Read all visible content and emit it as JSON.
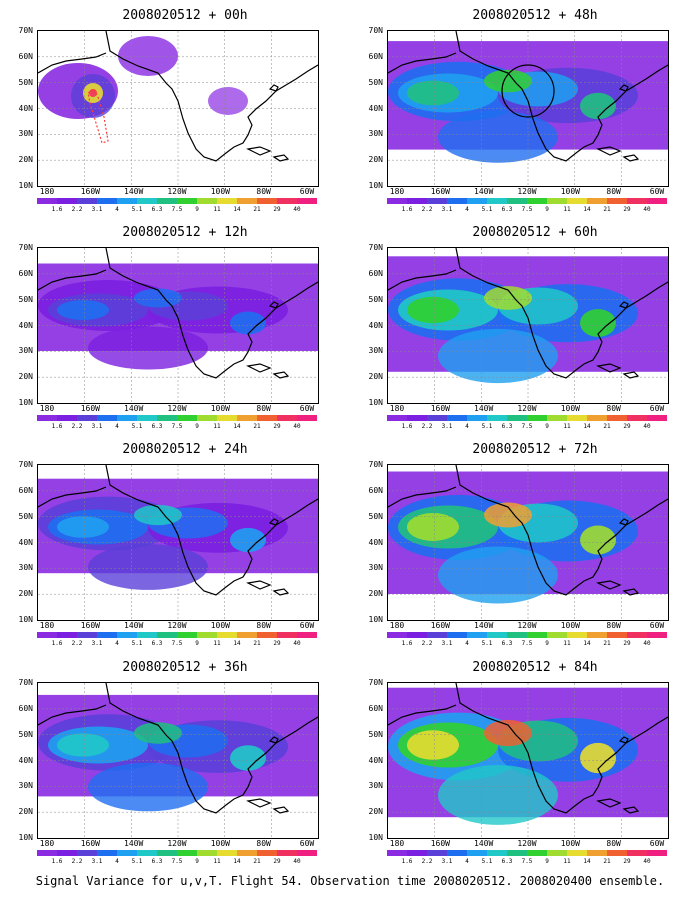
{
  "panels": [
    {
      "title": "2008020512 + 00h",
      "lead_hours": 0,
      "intensity": 0.15,
      "circle": false,
      "marker": true
    },
    {
      "title": "2008020512 + 48h",
      "lead_hours": 48,
      "intensity": 0.55,
      "circle": true,
      "marker": false
    },
    {
      "title": "2008020512 + 12h",
      "lead_hours": 12,
      "intensity": 0.25,
      "circle": false,
      "marker": false
    },
    {
      "title": "2008020512 + 60h",
      "lead_hours": 60,
      "intensity": 0.65,
      "circle": false,
      "marker": false
    },
    {
      "title": "2008020512 + 24h",
      "lead_hours": 24,
      "intensity": 0.35,
      "circle": false,
      "marker": false
    },
    {
      "title": "2008020512 + 72h",
      "lead_hours": 72,
      "intensity": 0.75,
      "circle": false,
      "marker": false
    },
    {
      "title": "2008020512 + 36h",
      "lead_hours": 36,
      "intensity": 0.45,
      "circle": false,
      "marker": false
    },
    {
      "title": "2008020512 + 84h",
      "lead_hours": 84,
      "intensity": 0.85,
      "circle": false,
      "marker": false
    }
  ],
  "y_labels": [
    "70N",
    "60N",
    "50N",
    "40N",
    "30N",
    "20N",
    "10N"
  ],
  "x_labels": [
    "180",
    "160W",
    "140W",
    "120W",
    "100W",
    "80W",
    "60W"
  ],
  "colorbar": {
    "labels": [
      "1.6",
      "2.2",
      "3.1",
      "4",
      "5.1",
      "6.3",
      "7.5",
      "9",
      "11",
      "14",
      "21",
      "29",
      "40"
    ],
    "colors": [
      "#8a2be2",
      "#7b1fe0",
      "#5a3fd8",
      "#1e6ef0",
      "#1fa0f0",
      "#20c8c8",
      "#20c080",
      "#30d030",
      "#a0dc30",
      "#e6dc30",
      "#f0a030",
      "#f06030",
      "#f03060",
      "#f02080"
    ]
  },
  "caption": "Signal Variance for u,v,T. Flight 54. Observation time 2008020512. 2008020400 ensemble."
}
